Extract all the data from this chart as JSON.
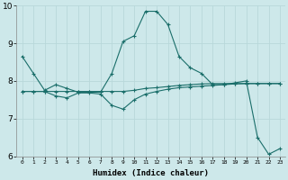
{
  "xlabel": "Humidex (Indice chaleur)",
  "xlim": [
    -0.5,
    23.5
  ],
  "ylim": [
    6,
    10
  ],
  "yticks": [
    6,
    7,
    8,
    9,
    10
  ],
  "xticks": [
    0,
    1,
    2,
    3,
    4,
    5,
    6,
    7,
    8,
    9,
    10,
    11,
    12,
    13,
    14,
    15,
    16,
    17,
    18,
    19,
    20,
    21,
    22,
    23
  ],
  "bg_color": "#cde8ea",
  "grid_color": "#b8d8da",
  "line_color": "#1a6e6a",
  "series": {
    "line1": {
      "x": [
        0,
        1,
        2,
        3,
        4,
        5,
        6,
        7,
        8,
        9,
        10,
        11,
        12,
        13,
        14,
        15,
        16,
        17,
        18,
        19,
        20,
        21,
        22,
        23
      ],
      "y": [
        8.65,
        8.2,
        7.75,
        7.9,
        7.8,
        7.7,
        7.7,
        7.7,
        8.2,
        9.05,
        9.2,
        9.85,
        9.85,
        9.5,
        8.65,
        8.35,
        8.2,
        7.9,
        7.9,
        7.95,
        8.0,
        6.5,
        6.05,
        6.2
      ]
    },
    "line2": {
      "x": [
        0,
        1,
        2,
        3,
        4,
        5,
        6,
        7,
        8,
        9,
        10,
        11,
        12,
        13,
        14,
        15,
        16,
        17,
        18,
        19,
        20,
        21,
        22,
        23
      ],
      "y": [
        7.72,
        7.72,
        7.72,
        7.72,
        7.72,
        7.72,
        7.72,
        7.72,
        7.72,
        7.72,
        7.75,
        7.8,
        7.82,
        7.85,
        7.88,
        7.9,
        7.92,
        7.93,
        7.93,
        7.93,
        7.93,
        7.93,
        7.93,
        7.93
      ]
    },
    "line3": {
      "x": [
        0,
        1,
        2,
        3,
        4,
        5,
        6,
        7,
        8,
        9,
        10,
        11,
        12,
        13,
        14,
        15,
        16,
        17,
        18,
        19,
        20,
        21,
        22,
        23
      ],
      "y": [
        7.72,
        7.72,
        7.72,
        7.6,
        7.55,
        7.68,
        7.68,
        7.65,
        7.35,
        7.25,
        7.5,
        7.65,
        7.72,
        7.78,
        7.82,
        7.84,
        7.86,
        7.88,
        7.9,
        7.92,
        7.93,
        7.93,
        7.93,
        7.93
      ]
    }
  }
}
